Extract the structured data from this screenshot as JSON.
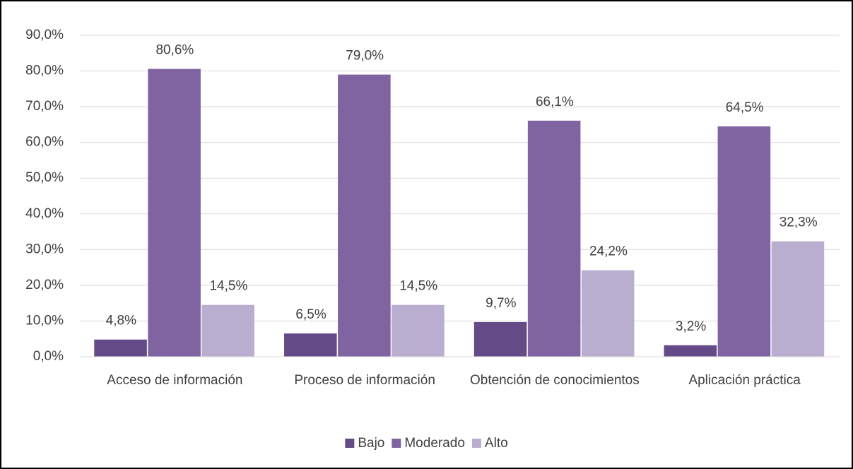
{
  "chart_data": {
    "type": "bar",
    "categories": [
      "Acceso de información",
      "Proceso de información",
      "Obtención de conocimientos",
      "Aplicación práctica"
    ],
    "series": [
      {
        "name": "Bajo",
        "color": "#654a88",
        "values": [
          4.8,
          6.5,
          9.7,
          3.2
        ],
        "value_labels": [
          "4,8%",
          "6,5%",
          "9,7%",
          "3,2%"
        ]
      },
      {
        "name": "Moderado",
        "color": "#8064a2",
        "values": [
          80.6,
          79.0,
          66.1,
          64.5
        ],
        "value_labels": [
          "80,6%",
          "79,0%",
          "66,1%",
          "64,5%"
        ]
      },
      {
        "name": "Alto",
        "color": "#b9aed0",
        "values": [
          14.5,
          14.5,
          24.2,
          32.3
        ],
        "value_labels": [
          "14,5%",
          "14,5%",
          "24,2%",
          "32,3%"
        ]
      }
    ],
    "ylim": [
      0,
      90
    ],
    "yticks": [
      {
        "value": 0,
        "label": "0,0%"
      },
      {
        "value": 10,
        "label": "10,0%"
      },
      {
        "value": 20,
        "label": "20,0%"
      },
      {
        "value": 30,
        "label": "30,0%"
      },
      {
        "value": 40,
        "label": "40,0%"
      },
      {
        "value": 50,
        "label": "50,0%"
      },
      {
        "value": 60,
        "label": "60,0%"
      },
      {
        "value": 70,
        "label": "70,0%"
      },
      {
        "value": 80,
        "label": "80,0%"
      },
      {
        "value": 90,
        "label": "90,0%"
      }
    ],
    "grid": true,
    "legend": "bottom"
  }
}
